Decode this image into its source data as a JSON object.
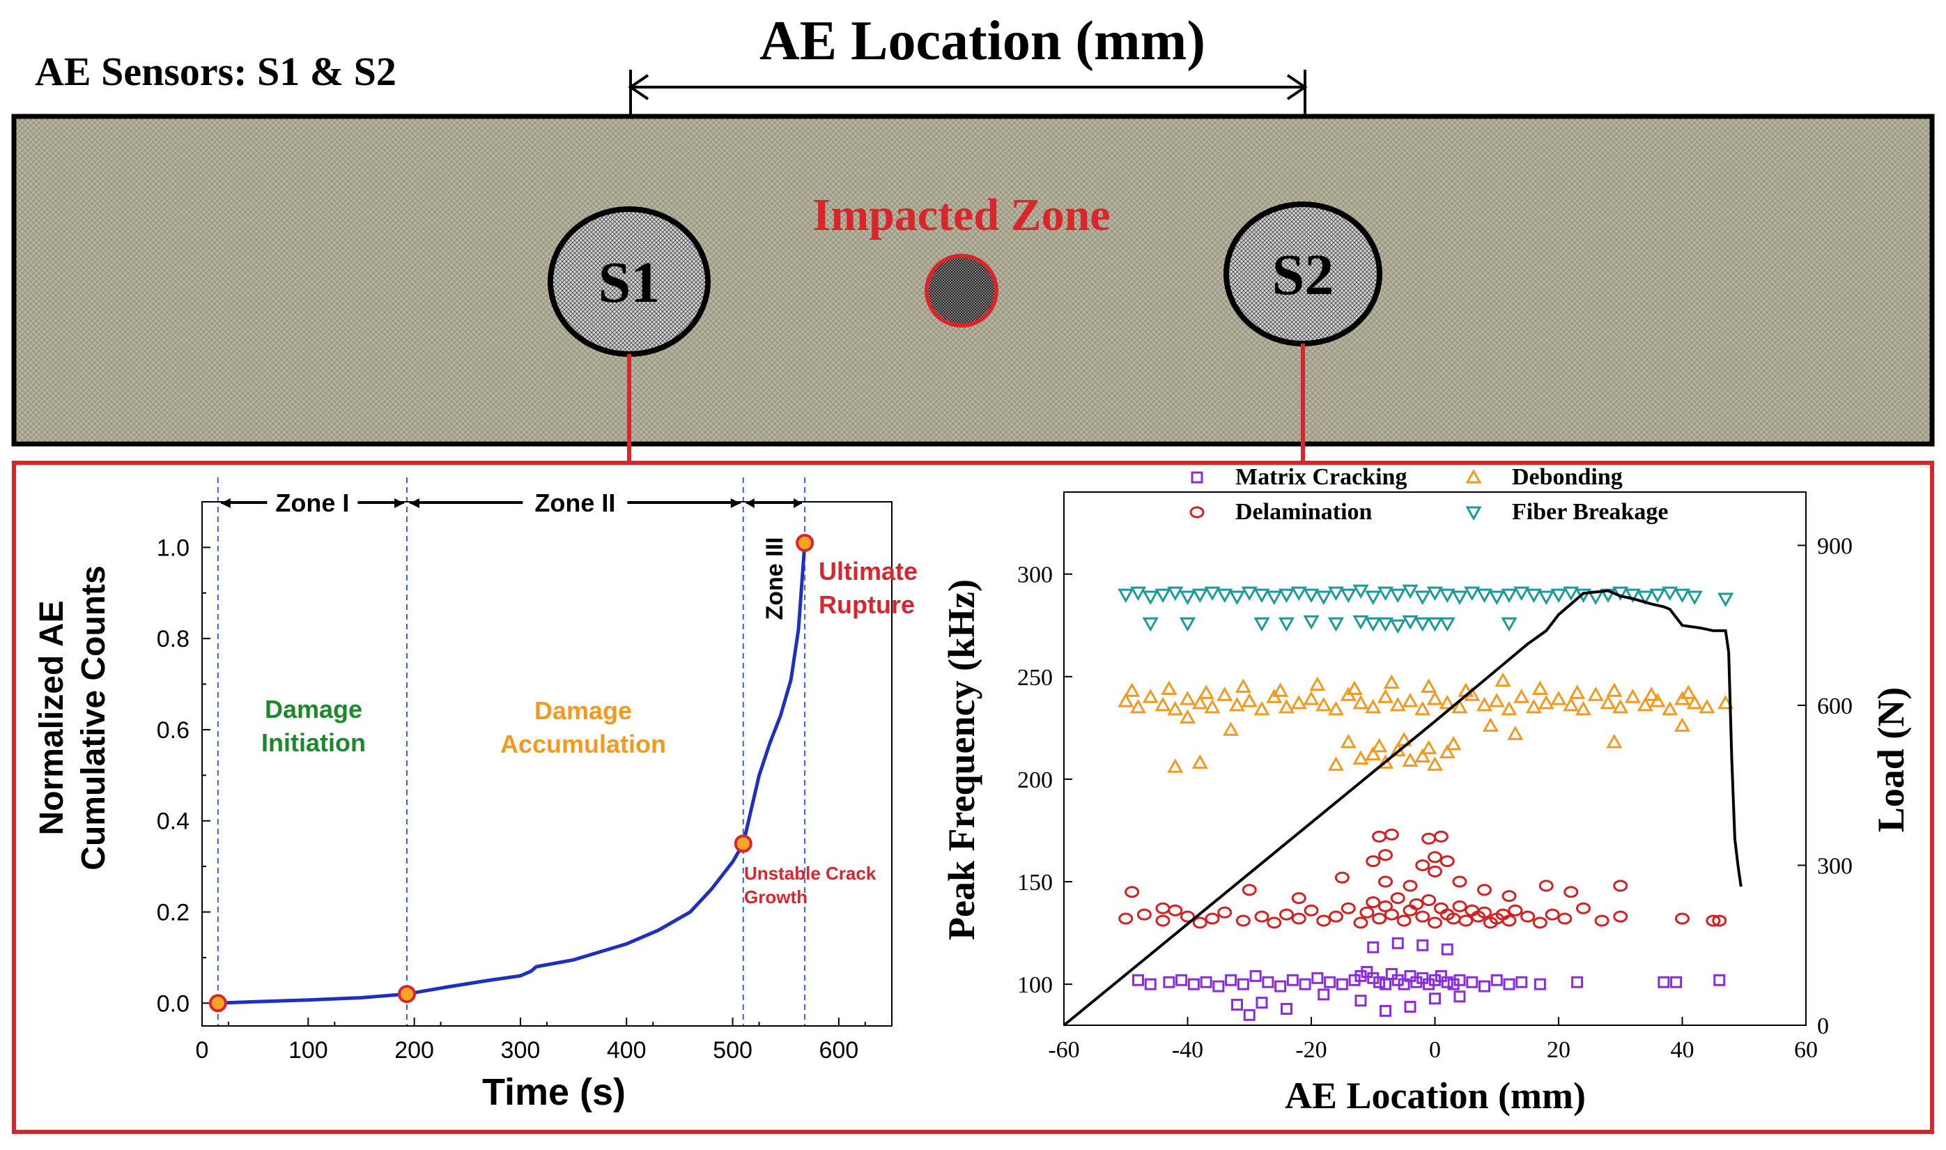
{
  "top": {
    "sensors_label": "AE Sensors: S1 & S2",
    "location_title": "AE Location (mm)",
    "impacted_zone_label": "Impacted Zone",
    "sensor1": "S1",
    "sensor2": "S2"
  },
  "colors": {
    "panel_fill": "#b7b59f",
    "red": "#d9262c",
    "blue_curve": "#1f2fc0",
    "green": "#1a8a2a",
    "orange": "#f39a1e",
    "purple": "#8a2be2",
    "delam_red": "#d42020",
    "teal": "#1a9a9a"
  },
  "chart_data": [
    {
      "type": "line",
      "title": "",
      "xlabel": "Time (s)",
      "ylabel_line1": "Normalized AE",
      "ylabel_line2": "Cumulative Counts",
      "xlim": [
        0,
        650
      ],
      "ylim": [
        -0.05,
        1.1
      ],
      "xticks": [
        "0",
        "100",
        "200",
        "300",
        "400",
        "500",
        "600"
      ],
      "yticks": [
        "0.0",
        "0.2",
        "0.4",
        "0.6",
        "0.8",
        "1.0"
      ],
      "series": [
        {
          "name": "Normalized AE Cumulative Counts",
          "x": [
            15,
            50,
            100,
            150,
            193,
            230,
            270,
            300,
            310,
            315,
            350,
            400,
            430,
            460,
            480,
            500,
            510,
            515,
            525,
            535,
            545,
            555,
            562,
            568
          ],
          "y": [
            0.0,
            0.003,
            0.007,
            0.012,
            0.02,
            0.035,
            0.05,
            0.06,
            0.07,
            0.08,
            0.095,
            0.13,
            0.16,
            0.2,
            0.25,
            0.31,
            0.35,
            0.4,
            0.5,
            0.57,
            0.63,
            0.71,
            0.82,
            1.01
          ]
        }
      ],
      "markers": [
        {
          "x": 15,
          "y": 0.0
        },
        {
          "x": 193,
          "y": 0.02
        },
        {
          "x": 510,
          "y": 0.35
        },
        {
          "x": 568,
          "y": 1.01
        }
      ],
      "zone_boundaries": [
        15,
        193,
        510,
        568
      ],
      "zones": [
        "Zone I",
        "Zone II",
        "Zone III"
      ],
      "annotations": {
        "damage_initiation_1": "Damage",
        "damage_initiation_2": "Initiation",
        "damage_accumulation_1": "Damage",
        "damage_accumulation_2": "Accumulation",
        "unstable_1": "Unstable Crack",
        "unstable_2": "Growth",
        "ultimate_1": "Ultimate",
        "ultimate_2": "Rupture"
      }
    },
    {
      "type": "scatter",
      "xlabel": "AE Location (mm)",
      "ylabel": "Peak Frequency (kHz)",
      "y2label": "Load (N)",
      "xlim": [
        -60,
        60
      ],
      "ylim": [
        80,
        340
      ],
      "y2lim": [
        0,
        1000
      ],
      "xticks": [
        "-60",
        "-40",
        "-20",
        "0",
        "20",
        "40",
        "60"
      ],
      "yticks": [
        "100",
        "150",
        "200",
        "250",
        "300"
      ],
      "y2ticks": [
        "0",
        "300",
        "600",
        "900"
      ],
      "legend": [
        "Matrix Cracking",
        "Debonding",
        "Delamination",
        "Fiber Breakage"
      ],
      "load_curve": {
        "x": [
          -60,
          -40,
          -20,
          0,
          15,
          18,
          20,
          24,
          28,
          30,
          32,
          35,
          37,
          38,
          40,
          43,
          45,
          47,
          47.5,
          48,
          48.5,
          49,
          49.5
        ],
        "y": [
          0,
          190,
          380,
          570,
          715,
          740,
          770,
          810,
          815,
          805,
          800,
          790,
          785,
          780,
          750,
          745,
          740,
          740,
          700,
          500,
          350,
          300,
          260
        ]
      },
      "series": [
        {
          "name": "Matrix Cracking",
          "marker": "square",
          "color": "#8a2be2",
          "x": [
            -48,
            -46,
            -43,
            -41,
            -39,
            -37,
            -35,
            -33,
            -31,
            -29,
            -27,
            -25,
            -23,
            -21,
            -19,
            -17,
            -15,
            -13,
            -12,
            -11,
            -10,
            -9,
            -8,
            -7,
            -6,
            -5,
            -4,
            -3,
            -2,
            -1,
            0,
            1,
            2,
            3,
            4,
            6,
            8,
            10,
            12,
            14,
            17,
            23,
            37,
            39,
            46,
            -32,
            -28,
            -24,
            -18,
            -12,
            -8,
            -4,
            0,
            4,
            -30,
            -10,
            -6,
            -2,
            2
          ],
          "y": [
            102,
            100,
            101,
            102,
            100,
            101,
            99,
            102,
            100,
            104,
            101,
            99,
            102,
            100,
            103,
            101,
            100,
            102,
            104,
            106,
            103,
            101,
            100,
            105,
            102,
            100,
            104,
            101,
            103,
            100,
            102,
            104,
            101,
            100,
            102,
            101,
            99,
            102,
            100,
            101,
            100,
            101,
            101,
            101,
            102,
            90,
            91,
            88,
            95,
            92,
            87,
            89,
            93,
            94,
            85,
            118,
            120,
            119,
            117
          ]
        },
        {
          "name": "Delamination",
          "marker": "circle",
          "color": "#d42020",
          "x": [
            -50,
            -47,
            -44,
            -42,
            -40,
            -38,
            -36,
            -34,
            -31,
            -28,
            -26,
            -24,
            -22,
            -20,
            -18,
            -16,
            -14,
            -12,
            -11,
            -10,
            -9,
            -8,
            -7,
            -6,
            -5,
            -4,
            -3,
            -2,
            -1,
            0,
            1,
            2,
            3,
            4,
            5,
            6,
            7,
            8,
            9,
            10,
            11,
            12,
            13,
            15,
            17,
            19,
            21,
            24,
            27,
            30,
            40,
            45,
            46,
            -49,
            -44,
            -30,
            -22,
            -15,
            -8,
            -4,
            0,
            4,
            8,
            12,
            18,
            22,
            30,
            -10,
            -8,
            -2,
            0,
            2,
            -9,
            -7,
            -1,
            1
          ],
          "y": [
            132,
            134,
            131,
            136,
            133,
            130,
            132,
            135,
            131,
            133,
            130,
            134,
            132,
            136,
            131,
            133,
            137,
            130,
            135,
            140,
            132,
            138,
            134,
            142,
            131,
            136,
            139,
            133,
            141,
            130,
            137,
            134,
            132,
            138,
            131,
            136,
            133,
            135,
            130,
            132,
            134,
            131,
            136,
            133,
            130,
            134,
            132,
            137,
            131,
            133,
            132,
            131,
            131,
            145,
            137,
            146,
            142,
            152,
            150,
            148,
            155,
            150,
            146,
            143,
            148,
            145,
            148,
            160,
            163,
            158,
            162,
            160,
            172,
            173,
            171,
            172
          ]
        },
        {
          "name": "Debonding",
          "marker": "triangle-up",
          "color": "#f39a1e",
          "x": [
            -50,
            -48,
            -46,
            -44,
            -42,
            -40,
            -38,
            -36,
            -34,
            -32,
            -30,
            -28,
            -26,
            -24,
            -22,
            -20,
            -18,
            -16,
            -14,
            -12,
            -10,
            -8,
            -6,
            -4,
            -2,
            0,
            2,
            4,
            6,
            8,
            10,
            12,
            14,
            16,
            18,
            20,
            22,
            24,
            26,
            28,
            30,
            32,
            34,
            36,
            38,
            40,
            42,
            44,
            47,
            -49,
            -43,
            -37,
            -31,
            -25,
            -19,
            -13,
            -7,
            -1,
            5,
            11,
            17,
            23,
            29,
            35,
            41,
            -42,
            -38,
            -33,
            -16,
            -12,
            -10,
            -8,
            -6,
            -4,
            -2,
            0,
            2,
            -14,
            -9,
            -5,
            -1,
            3,
            -40,
            9,
            29,
            40,
            13
          ],
          "y": [
            238,
            235,
            240,
            236,
            234,
            239,
            237,
            235,
            241,
            236,
            238,
            234,
            240,
            235,
            237,
            239,
            236,
            234,
            241,
            237,
            235,
            240,
            236,
            238,
            234,
            239,
            237,
            235,
            241,
            236,
            238,
            234,
            240,
            235,
            237,
            239,
            236,
            234,
            241,
            237,
            235,
            240,
            236,
            238,
            234,
            239,
            237,
            235,
            237,
            243,
            244,
            242,
            245,
            243,
            246,
            244,
            247,
            245,
            243,
            248,
            244,
            242,
            243,
            241,
            242,
            206,
            208,
            224,
            207,
            210,
            212,
            208,
            214,
            209,
            211,
            207,
            213,
            218,
            216,
            219,
            215,
            217,
            230,
            226,
            218,
            226,
            222
          ]
        },
        {
          "name": "Fiber Breakage",
          "marker": "triangle-down",
          "color": "#1a9a9a",
          "x": [
            -50,
            -48,
            -46,
            -44,
            -42,
            -40,
            -38,
            -36,
            -34,
            -32,
            -30,
            -28,
            -26,
            -24,
            -22,
            -20,
            -18,
            -16,
            -14,
            -12,
            -10,
            -8,
            -6,
            -4,
            -2,
            0,
            2,
            4,
            6,
            8,
            10,
            12,
            14,
            16,
            18,
            20,
            22,
            24,
            26,
            28,
            30,
            32,
            34,
            36,
            38,
            40,
            42,
            47,
            -46,
            -40,
            -28,
            -24,
            -20,
            -10,
            -8,
            -6,
            -4,
            -2,
            0,
            2,
            -12,
            -16,
            12
          ],
          "y": [
            290,
            291,
            289,
            290,
            291,
            289,
            290,
            291,
            290,
            289,
            291,
            290,
            289,
            290,
            291,
            290,
            289,
            291,
            290,
            292,
            289,
            291,
            290,
            292,
            289,
            291,
            290,
            289,
            291,
            290,
            289,
            290,
            291,
            290,
            289,
            290,
            291,
            290,
            289,
            290,
            291,
            290,
            289,
            290,
            291,
            290,
            289,
            288,
            276,
            276,
            276,
            276,
            277,
            276,
            276,
            275,
            277,
            276,
            276,
            276,
            277,
            276,
            276
          ]
        }
      ]
    }
  ]
}
